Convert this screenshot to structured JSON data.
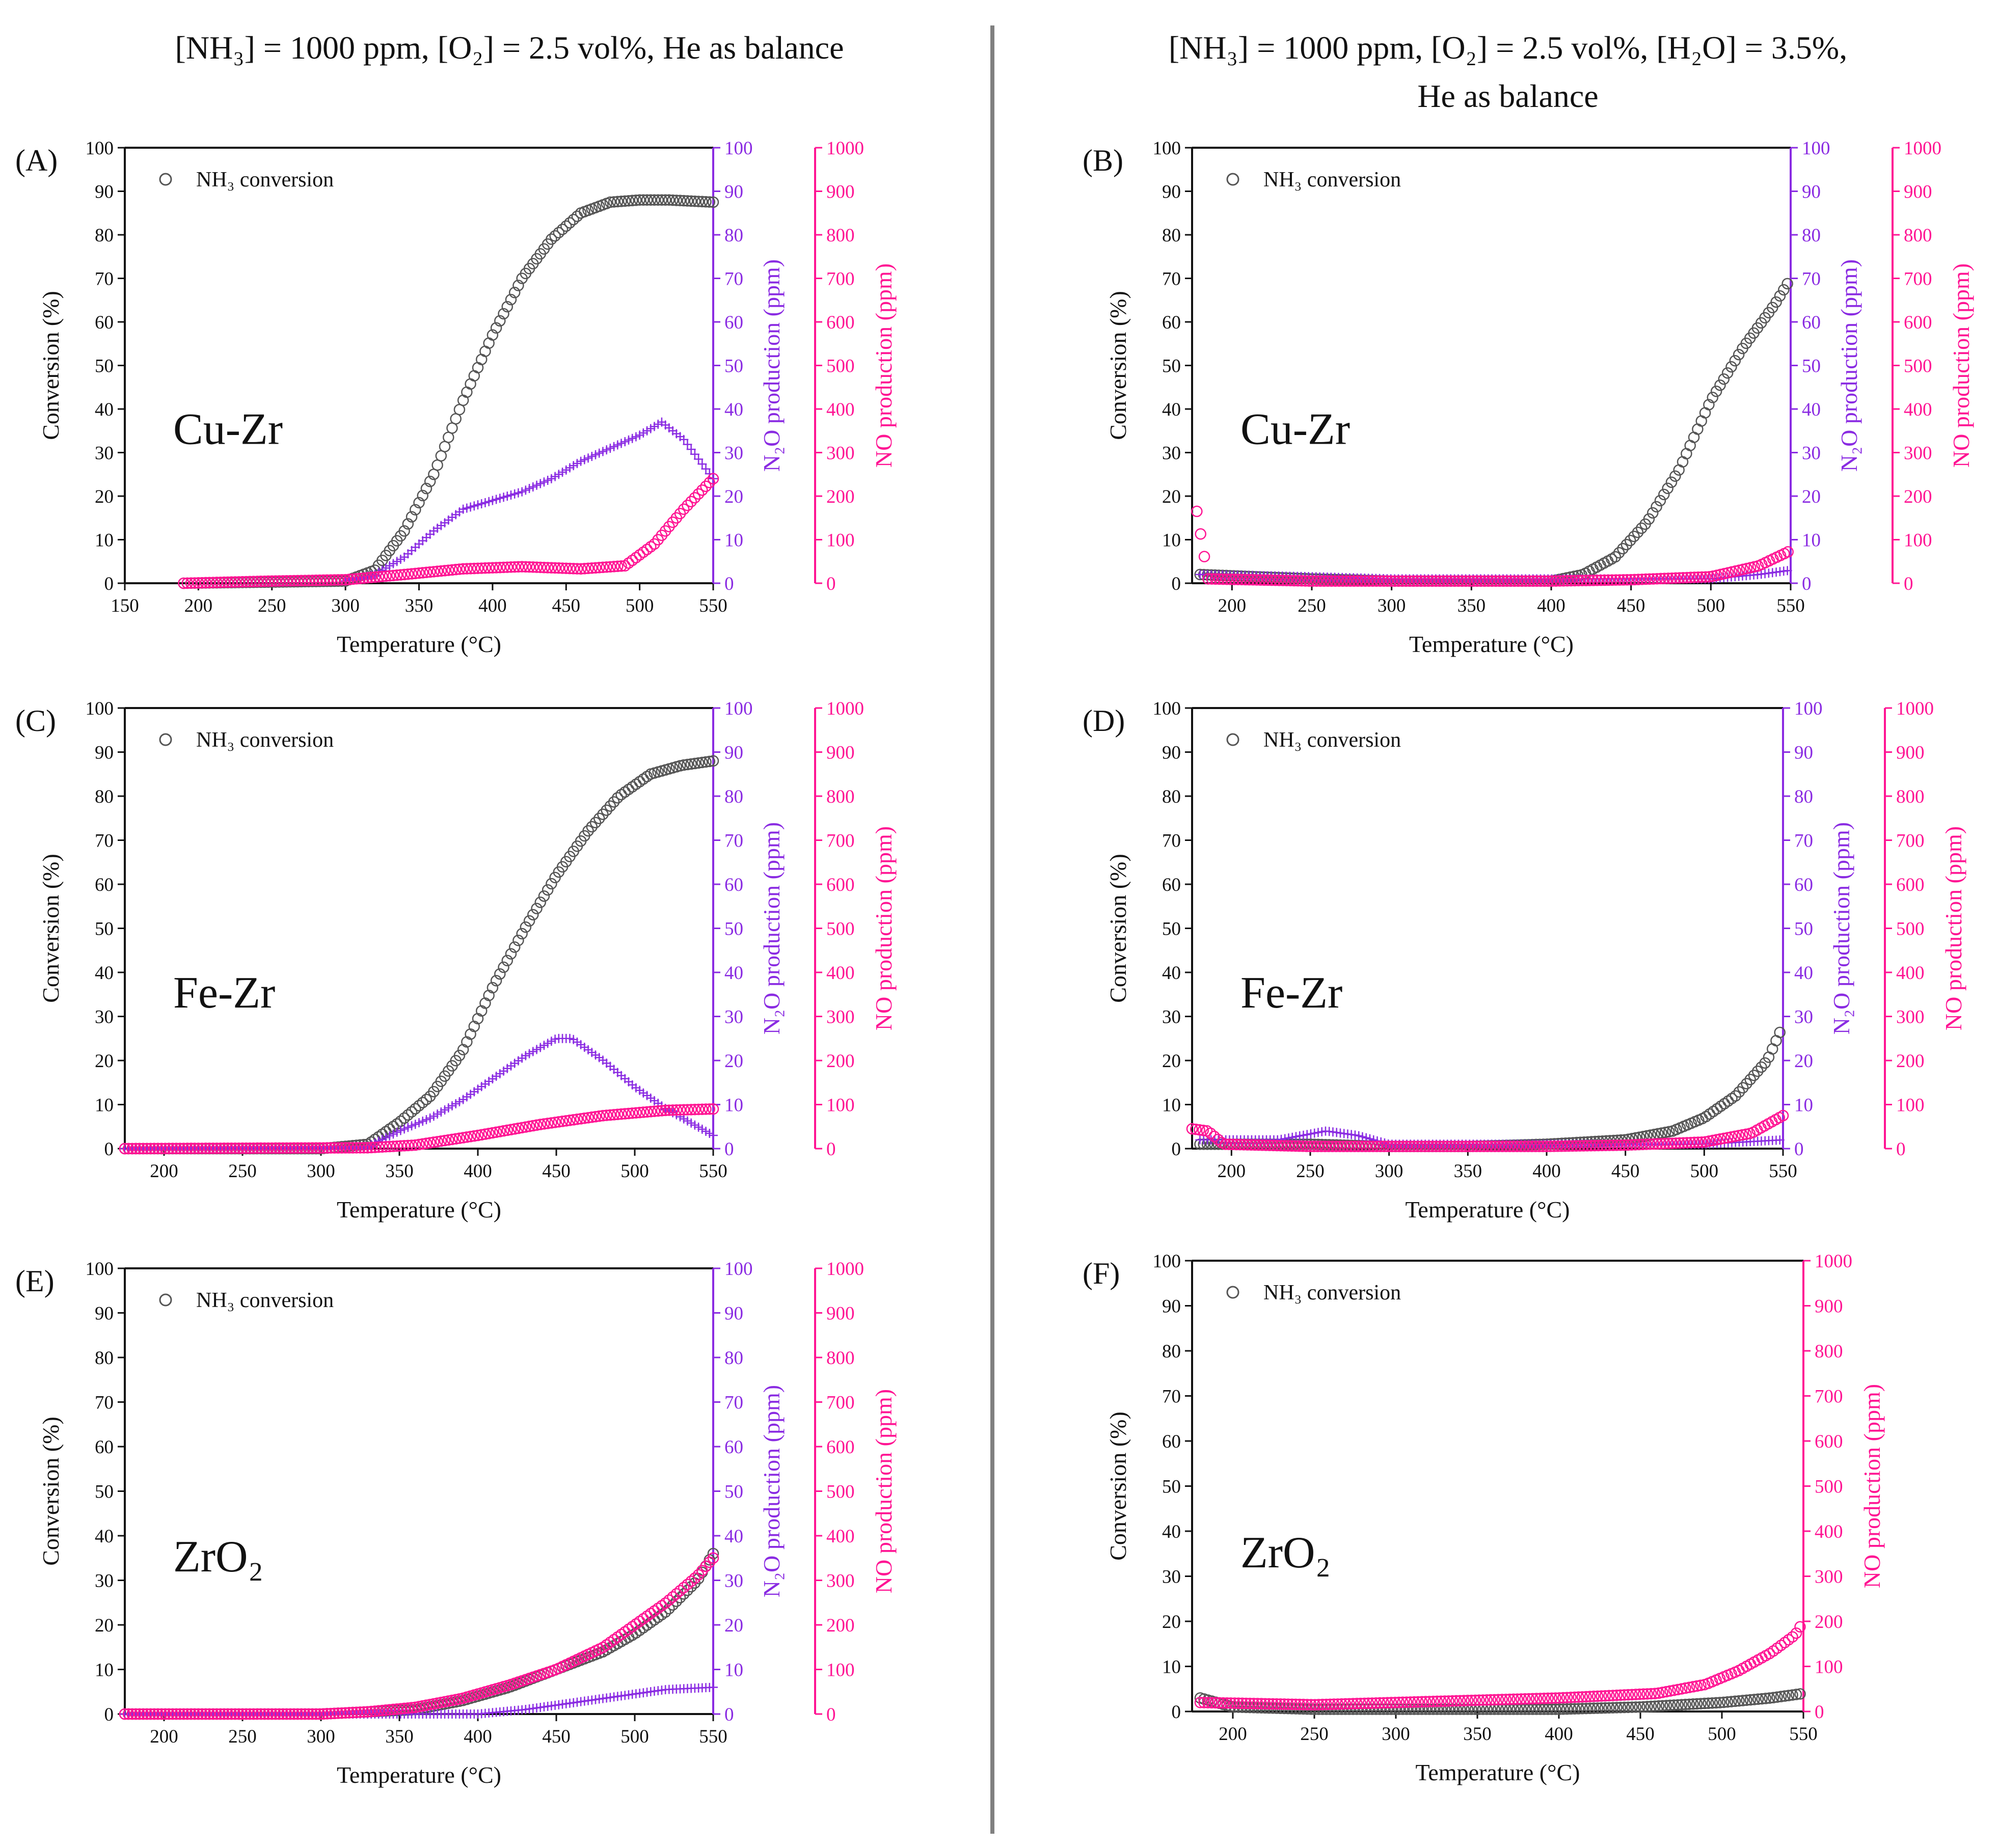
{
  "header_left": "[NH₃] = 1000 ppm, [O₂] = 2.5 vol%, He as balance",
  "header_right_line1": "[NH₃] = 1000 ppm, [O₂] = 2.5 vol%, [H₂O] = 3.5%,",
  "header_right_line2": "He as balance",
  "colors": {
    "conversion": "#555555",
    "n2o": "#8a2be2",
    "no": "#ff1493",
    "divider": "#808080"
  },
  "common": {
    "xlabel": "Temperature (°C)",
    "ylabel": "Conversion (%)",
    "n2o_label": "N₂O production (ppm)",
    "no_label": "NO production (ppm)",
    "legend_label": "NH₃ conversion",
    "conv_ticks": [
      "0",
      "10",
      "20",
      "30",
      "40",
      "50",
      "60",
      "70",
      "80",
      "90",
      "100"
    ],
    "n2o_ticks": [
      "0",
      "10",
      "20",
      "30",
      "40",
      "50",
      "60",
      "70",
      "80",
      "90",
      "100"
    ],
    "no_ticks": [
      "0",
      "100",
      "200",
      "300",
      "400",
      "500",
      "600",
      "700",
      "800",
      "900",
      "1000"
    ]
  },
  "chart_data": [
    {
      "panel": "(A)",
      "catalyst": "Cu-Zr",
      "type": "scatter",
      "xlabel": "Temperature (°C)",
      "ylabel": "Conversion (%)",
      "xlim": [
        150,
        550
      ],
      "xticks": [
        "150",
        "200",
        "250",
        "300",
        "350",
        "400",
        "450",
        "500",
        "550"
      ],
      "ylim": [
        0,
        100
      ],
      "n2o_ylim": [
        0,
        100
      ],
      "no_ylim": [
        0,
        1000
      ],
      "series": [
        {
          "name": "NH₃ conversion",
          "axis": "conversion",
          "x": [
            190,
            300,
            320,
            340,
            360,
            380,
            400,
            420,
            440,
            460,
            480,
            500,
            520,
            550
          ],
          "y": [
            0,
            0.5,
            3,
            12,
            25,
            42,
            57,
            70,
            79,
            85,
            87.5,
            88,
            88,
            87.5
          ]
        },
        {
          "name": "N₂O production",
          "axis": "n2o",
          "x": [
            300,
            320,
            340,
            360,
            380,
            400,
            420,
            440,
            460,
            480,
            500,
            515,
            530,
            550
          ],
          "y": [
            0.5,
            2,
            6,
            12,
            17,
            19,
            21,
            24,
            28,
            31,
            34,
            37,
            33,
            24
          ]
        },
        {
          "name": "NO production",
          "axis": "no",
          "x": [
            190,
            250,
            300,
            340,
            380,
            420,
            460,
            490,
            510,
            530,
            550
          ],
          "y": [
            0,
            5,
            8,
            20,
            33,
            38,
            33,
            40,
            90,
            170,
            240
          ]
        }
      ]
    },
    {
      "panel": "(B)",
      "catalyst": "Cu-Zr",
      "type": "scatter",
      "xlabel": "Temperature (°C)",
      "ylabel": "Conversion (%)",
      "xlim": [
        175,
        550
      ],
      "xticks": [
        "200",
        "250",
        "300",
        "350",
        "400",
        "450",
        "500",
        "550"
      ],
      "ylim": [
        0,
        100
      ],
      "n2o_ylim": [
        0,
        100
      ],
      "no_ylim": [
        0,
        1000
      ],
      "series": [
        {
          "name": "NH₃ conversion",
          "axis": "conversion",
          "x": [
            180,
            250,
            300,
            350,
            400,
            420,
            440,
            460,
            480,
            500,
            520,
            540,
            550
          ],
          "y": [
            2,
            1,
            0.5,
            0.5,
            0.5,
            2,
            6,
            14,
            26,
            42,
            54,
            64,
            70
          ]
        },
        {
          "name": "N₂O production",
          "axis": "n2o",
          "x": [
            180,
            250,
            300,
            350,
            400,
            450,
            500,
            530,
            550
          ],
          "y": [
            2,
            1.5,
            1,
            1,
            1,
            1,
            1,
            2,
            3
          ]
        },
        {
          "name": "NO production",
          "axis": "no",
          "x": [
            178,
            185,
            250,
            300,
            350,
            400,
            450,
            500,
            530,
            550
          ],
          "y": [
            165,
            10,
            5,
            5,
            5,
            5,
            8,
            15,
            40,
            75
          ]
        }
      ]
    },
    {
      "panel": "(C)",
      "catalyst": "Fe-Zr",
      "type": "scatter",
      "xlabel": "Temperature (°C)",
      "ylabel": "Conversion (%)",
      "xlim": [
        175,
        550
      ],
      "xticks": [
        "200",
        "250",
        "300",
        "350",
        "400",
        "450",
        "500",
        "550"
      ],
      "ylim": [
        0,
        100
      ],
      "n2o_ylim": [
        0,
        100
      ],
      "no_ylim": [
        0,
        1000
      ],
      "series": [
        {
          "name": "NH₃ conversion",
          "axis": "conversion",
          "x": [
            175,
            300,
            330,
            350,
            370,
            390,
            410,
            430,
            450,
            470,
            490,
            510,
            530,
            550
          ],
          "y": [
            0,
            0,
            1,
            6,
            12,
            22,
            37,
            50,
            62,
            72,
            80,
            85,
            87,
            88
          ]
        },
        {
          "name": "N₂O production",
          "axis": "n2o",
          "x": [
            175,
            330,
            350,
            370,
            390,
            410,
            430,
            450,
            460,
            480,
            500,
            520,
            540,
            550
          ],
          "y": [
            0,
            0.5,
            4,
            7,
            11,
            16,
            21,
            25,
            25,
            20,
            14,
            9,
            5,
            3
          ]
        },
        {
          "name": "NO production",
          "axis": "no",
          "x": [
            175,
            330,
            360,
            400,
            440,
            480,
            520,
            550
          ],
          "y": [
            0,
            2,
            8,
            30,
            55,
            75,
            87,
            90
          ]
        }
      ]
    },
    {
      "panel": "(D)",
      "catalyst": "Fe-Zr",
      "type": "scatter",
      "xlabel": "Temperature (°C)",
      "ylabel": "Conversion (%)",
      "xlim": [
        175,
        550
      ],
      "xticks": [
        "200",
        "250",
        "300",
        "350",
        "400",
        "450",
        "500",
        "550"
      ],
      "ylim": [
        0,
        100
      ],
      "n2o_ylim": [
        0,
        100
      ],
      "no_ylim": [
        0,
        1000
      ],
      "series": [
        {
          "name": "NH₃ conversion",
          "axis": "conversion",
          "x": [
            180,
            250,
            300,
            350,
            400,
            450,
            480,
            500,
            520,
            540,
            550
          ],
          "y": [
            1,
            1,
            0.5,
            0.5,
            1,
            2,
            4,
            7,
            12,
            20,
            28
          ]
        },
        {
          "name": "N₂O production",
          "axis": "n2o",
          "x": [
            180,
            230,
            260,
            280,
            300,
            350,
            400,
            450,
            500,
            550
          ],
          "y": [
            2,
            2,
            4,
            3,
            1,
            1,
            1,
            1,
            1,
            2
          ]
        },
        {
          "name": "NO production",
          "axis": "no",
          "x": [
            175,
            185,
            195,
            250,
            300,
            350,
            400,
            450,
            500,
            530,
            550
          ],
          "y": [
            45,
            40,
            10,
            5,
            5,
            5,
            5,
            8,
            15,
            35,
            75
          ]
        }
      ]
    },
    {
      "panel": "(E)",
      "catalyst": "ZrO₂",
      "type": "scatter",
      "xlabel": "Temperature (°C)",
      "ylabel": "Conversion (%)",
      "xlim": [
        175,
        550
      ],
      "xticks": [
        "200",
        "250",
        "300",
        "350",
        "400",
        "450",
        "500",
        "550"
      ],
      "ylim": [
        0,
        100
      ],
      "n2o_ylim": [
        0,
        100
      ],
      "no_ylim": [
        0,
        1000
      ],
      "series": [
        {
          "name": "NH₃ conversion",
          "axis": "conversion",
          "x": [
            175,
            300,
            330,
            360,
            390,
            420,
            450,
            480,
            500,
            520,
            540,
            550
          ],
          "y": [
            0,
            0,
            0.5,
            1,
            3,
            6,
            10,
            14,
            18,
            23,
            30,
            36
          ]
        },
        {
          "name": "N₂O production",
          "axis": "n2o",
          "x": [
            175,
            300,
            400,
            430,
            460,
            490,
            520,
            550
          ],
          "y": [
            0,
            0,
            0,
            1,
            2.5,
            4,
            5.5,
            6
          ]
        },
        {
          "name": "NO production",
          "axis": "no",
          "x": [
            175,
            300,
            330,
            360,
            390,
            420,
            450,
            480,
            500,
            520,
            540,
            550
          ],
          "y": [
            0,
            0,
            5,
            15,
            35,
            65,
            100,
            150,
            200,
            250,
            310,
            350
          ]
        }
      ]
    },
    {
      "panel": "(F)",
      "catalyst": "ZrO₂",
      "type": "scatter",
      "xlabel": "Temperature (°C)",
      "ylabel": "Conversion (%)",
      "xlim": [
        175,
        550
      ],
      "xticks": [
        "200",
        "250",
        "300",
        "350",
        "400",
        "450",
        "500",
        "550"
      ],
      "ylim": [
        0,
        100
      ],
      "no_ylim": [
        0,
        1000
      ],
      "series": [
        {
          "name": "NH₃ conversion",
          "axis": "conversion",
          "x": [
            180,
            200,
            250,
            300,
            350,
            400,
            450,
            500,
            530,
            550
          ],
          "y": [
            3,
            1,
            0.5,
            0.5,
            0.5,
            0.5,
            1,
            2,
            3,
            4
          ]
        },
        {
          "name": "NO production",
          "axis": "no",
          "x": [
            180,
            250,
            300,
            350,
            400,
            430,
            460,
            490,
            510,
            530,
            545,
            550
          ],
          "y": [
            20,
            15,
            20,
            25,
            30,
            35,
            40,
            60,
            90,
            130,
            170,
            200
          ]
        }
      ]
    }
  ]
}
